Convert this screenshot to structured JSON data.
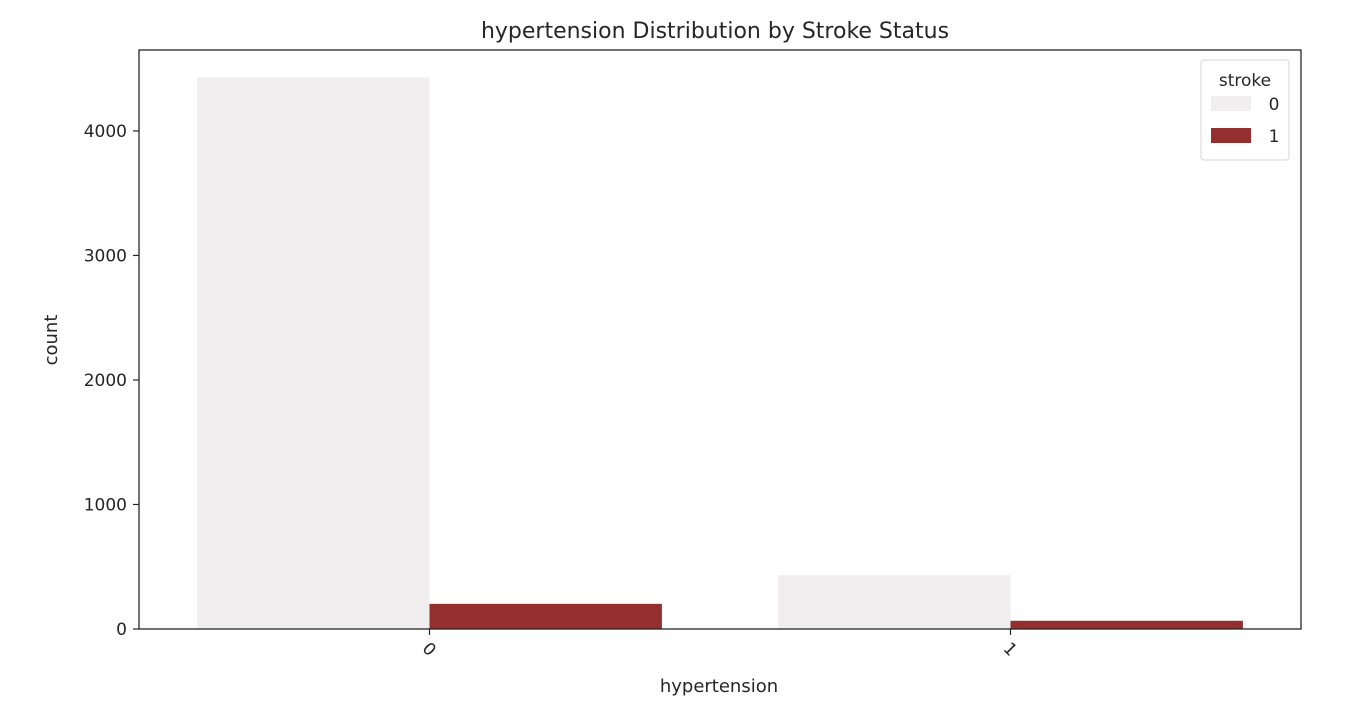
{
  "chart_data": {
    "type": "bar",
    "title": "hypertension Distribution by Stroke Status",
    "xlabel": "hypertension",
    "ylabel": "count",
    "categories": [
      "0",
      "1"
    ],
    "ylim": [
      0,
      4650
    ],
    "yticks": [
      0,
      1000,
      2000,
      3000,
      4000
    ],
    "ytick_labels": [
      "0",
      "1000",
      "2000",
      "3000",
      "4000"
    ],
    "series": [
      {
        "name": "0",
        "values": [
          4429,
          432
        ],
        "color": "#f0eeee"
      },
      {
        "name": "1",
        "values": [
          202,
          66
        ],
        "color": "#942f2f"
      }
    ],
    "legend": {
      "title": "stroke",
      "placement": "top-right"
    },
    "grid": false
  }
}
